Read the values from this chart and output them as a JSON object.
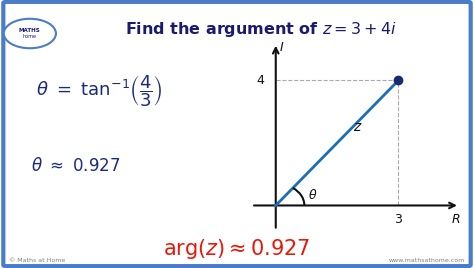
{
  "bg_color": "#ffffff",
  "border_color": "#4a7cc7",
  "title": "Find the argument of $z = 3 + 4i$",
  "title_color": "#1a1a6e",
  "title_fontsize": 11.5,
  "eq1_color": "#1a2a7e",
  "eq1_fontsize": 13,
  "eq2_color": "#1a2a7e",
  "eq2_fontsize": 12,
  "eq3": "$\\mathrm{arg}(z) \\approx 0.927$",
  "eq3_color": "#e8190a",
  "eq3_fontsize": 15,
  "plot_point": [
    3,
    4
  ],
  "axis_color": "#111111",
  "line_color": "#1a6eb5",
  "dot_color": "#1a2a6e",
  "dot_size": 6,
  "angle_color": "#111111",
  "theta_label": "$\\theta$",
  "z_label": "$z$",
  "R_label": "R",
  "I_label": "I",
  "watermark_left": "© Maths at Home",
  "watermark_right": "www.mathsathome.com",
  "logo_text": "MATHS"
}
